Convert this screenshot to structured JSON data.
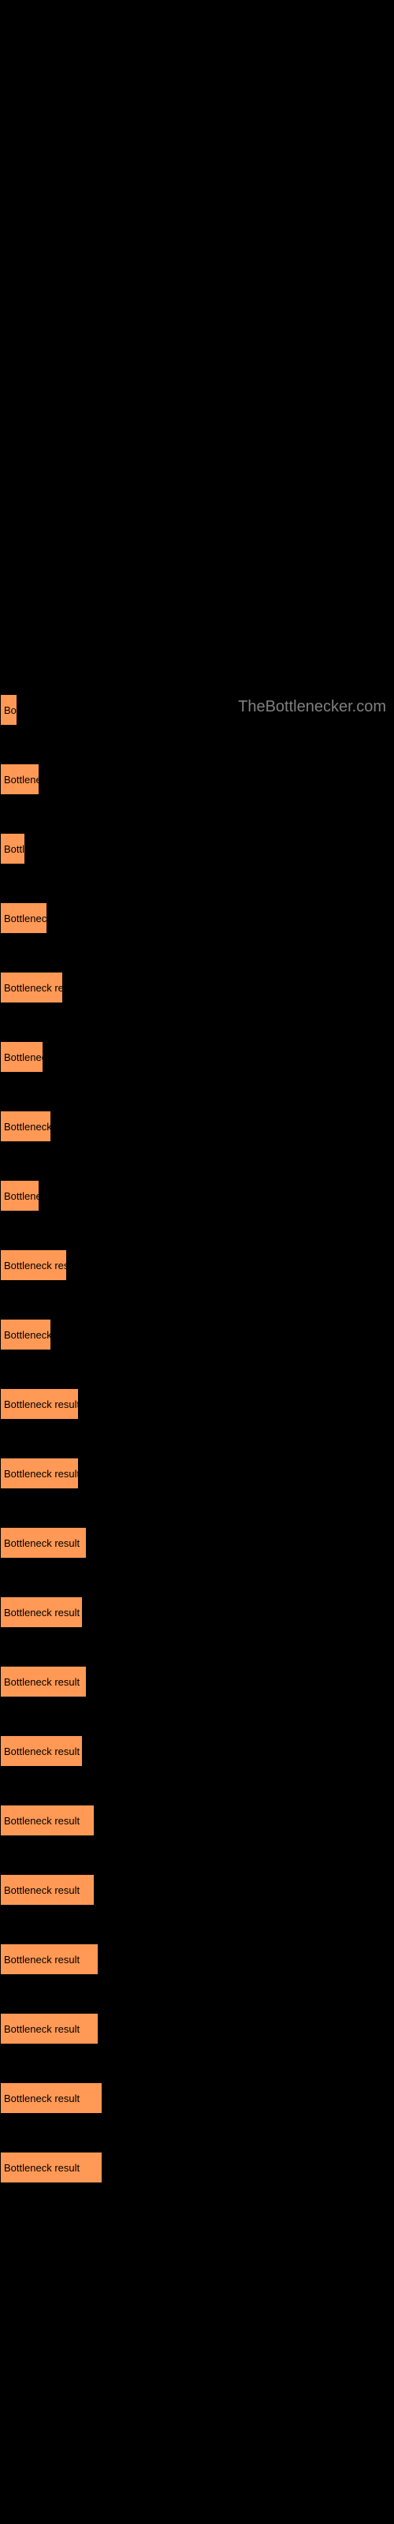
{
  "watermark": "TheBottlenecker.com",
  "chart": {
    "type": "bar",
    "orientation": "horizontal",
    "bar_color": "#ff9955",
    "background_color": "#000000",
    "text_color": "#000000",
    "watermark_color": "#808080",
    "bars": [
      {
        "label": "Bo",
        "width": 22
      },
      {
        "label": "Bottlene",
        "width": 50
      },
      {
        "label": "Bottl",
        "width": 32
      },
      {
        "label": "Bottleneck",
        "width": 60
      },
      {
        "label": "Bottleneck re",
        "width": 80
      },
      {
        "label": "Bottlenec",
        "width": 55
      },
      {
        "label": "Bottleneck",
        "width": 65
      },
      {
        "label": "Bottlene",
        "width": 50
      },
      {
        "label": "Bottleneck res",
        "width": 85
      },
      {
        "label": "Bottleneck",
        "width": 65
      },
      {
        "label": "Bottleneck result",
        "width": 100
      },
      {
        "label": "Bottleneck result",
        "width": 100
      },
      {
        "label": "Bottleneck result",
        "width": 110
      },
      {
        "label": "Bottleneck result",
        "width": 105
      },
      {
        "label": "Bottleneck result",
        "width": 110
      },
      {
        "label": "Bottleneck result",
        "width": 105
      },
      {
        "label": "Bottleneck result",
        "width": 120
      },
      {
        "label": "Bottleneck result",
        "width": 120
      },
      {
        "label": "Bottleneck result",
        "width": 125
      },
      {
        "label": "Bottleneck result",
        "width": 125
      },
      {
        "label": "Bottleneck result",
        "width": 130
      },
      {
        "label": "Bottleneck result",
        "width": 130
      }
    ]
  }
}
